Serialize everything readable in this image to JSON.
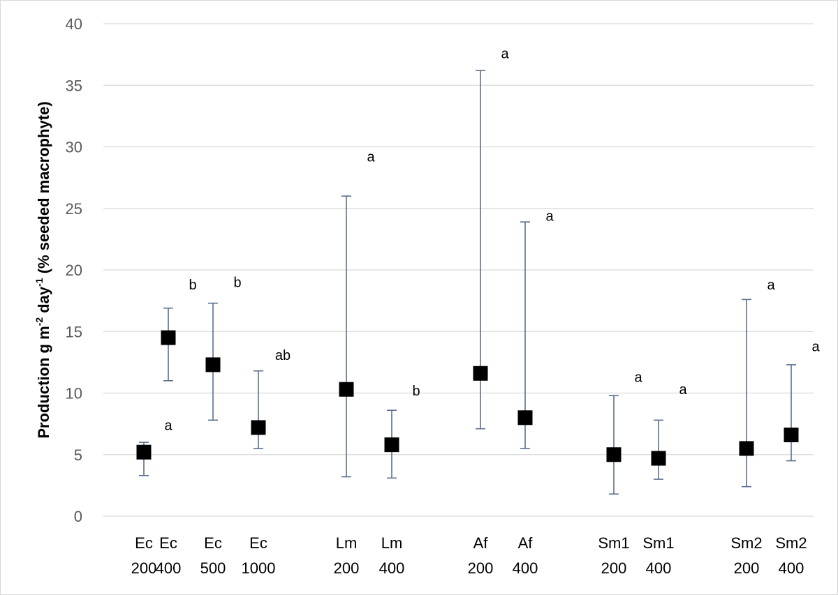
{
  "chart_data": {
    "type": "scatter",
    "ylabel_parts": [
      "Production g m",
      "-2",
      " day",
      "-1",
      " (% seeded macrophyte)"
    ],
    "ylim": [
      0,
      40
    ],
    "yticks": [
      0,
      5,
      10,
      15,
      20,
      25,
      30,
      35,
      40
    ],
    "grid": true,
    "categories": [
      {
        "line1": "Ec",
        "line2": "200"
      },
      {
        "line1": "Ec",
        "line2": "400"
      },
      {
        "line1": "Ec",
        "line2": "500"
      },
      {
        "line1": "Ec",
        "line2": "1000"
      },
      {
        "line1": "Lm",
        "line2": "200"
      },
      {
        "line1": "Lm",
        "line2": "400"
      },
      {
        "line1": "Af",
        "line2": "200"
      },
      {
        "line1": "Af",
        "line2": "400"
      },
      {
        "line1": "Sm1",
        "line2": "200"
      },
      {
        "line1": "Sm1",
        "line2": "400"
      },
      {
        "line1": "Sm2",
        "line2": "200"
      },
      {
        "line1": "Sm2",
        "line2": "400"
      }
    ],
    "values": [
      5.2,
      14.5,
      12.3,
      7.2,
      10.3,
      5.8,
      11.6,
      8.0,
      5.0,
      4.7,
      5.5,
      6.6
    ],
    "error_low": [
      3.3,
      11.0,
      7.8,
      5.5,
      3.2,
      3.1,
      7.1,
      5.5,
      1.8,
      3.0,
      2.4,
      4.5
    ],
    "error_high": [
      6.0,
      16.9,
      17.3,
      11.8,
      26.0,
      8.6,
      36.2,
      23.9,
      9.8,
      7.8,
      17.6,
      12.3
    ],
    "annotations": [
      {
        "text": "a",
        "category": 1,
        "y": 7.4
      },
      {
        "text": "b",
        "category": 2,
        "y": 18.8
      },
      {
        "text": "b",
        "category": 3,
        "y": 19.0
      },
      {
        "text": "ab",
        "category": 4,
        "y": 13.1
      },
      {
        "text": "a",
        "category": 5,
        "y": 29.2
      },
      {
        "text": "b",
        "category": 6,
        "y": 10.2
      },
      {
        "text": "a",
        "category": 7,
        "y": 37.6
      },
      {
        "text": "a",
        "category": 8,
        "y": 24.4
      },
      {
        "text": "a",
        "category": 9,
        "y": 11.3
      },
      {
        "text": "a",
        "category": 10,
        "y": 10.3
      },
      {
        "text": "a",
        "category": 11,
        "y": 18.8
      },
      {
        "text": "a",
        "category": 12,
        "y": 13.8
      }
    ],
    "colors": {
      "marker": "#000000",
      "error_bar": "#5a6f8f",
      "grid": "#d9d9d9",
      "tick_text": "#595959"
    }
  }
}
